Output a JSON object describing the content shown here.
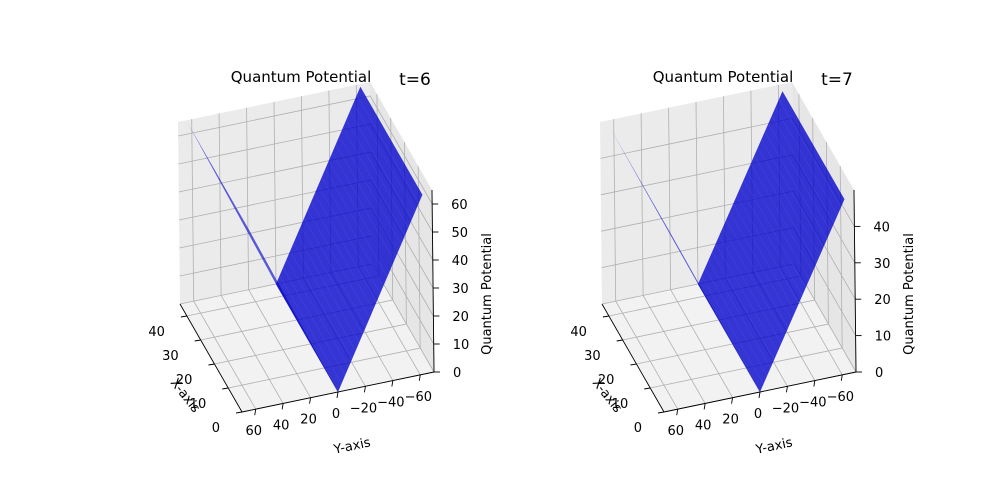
{
  "figure": {
    "background": "#ffffff",
    "pane_color": "#f2f2f2",
    "grid_color": "#b0b0b0",
    "surface_color": "#0000cc"
  },
  "chart_data": [
    {
      "type": "surface3d",
      "title": "Quantum Potential",
      "annotation": "t=6",
      "xlabel": "X-axis",
      "ylabel": "Y-axis",
      "zlabel": "Quantum Potential",
      "x_ticks": [
        "0",
        "10",
        "20",
        "30",
        "40"
      ],
      "y_ticks": [
        "60",
        "40",
        "20",
        "0",
        "−20",
        "−40",
        "−60"
      ],
      "z_ticks": [
        "0",
        "10",
        "20",
        "30",
        "40",
        "50",
        "60"
      ],
      "xlim": [
        0,
        45
      ],
      "ylim": [
        -70,
        70
      ],
      "zlim": [
        0,
        65
      ],
      "surface": {
        "form": "V-shaped valley along Y, constant in X",
        "x_range": [
          0,
          45
        ],
        "y_range": [
          -63,
          63
        ],
        "valley_y": 0,
        "z_min": 0,
        "z_at_y_neg": 64,
        "z_at_y_pos": 64
      }
    },
    {
      "type": "surface3d",
      "title": "Quantum Potential",
      "annotation": "t=7",
      "xlabel": "X-axis",
      "ylabel": "Y-axis",
      "zlabel": "Quantum Potential",
      "x_ticks": [
        "0",
        "10",
        "20",
        "30",
        "40"
      ],
      "y_ticks": [
        "60",
        "40",
        "20",
        "0",
        "−20",
        "−40",
        "−60"
      ],
      "z_ticks": [
        "0",
        "10",
        "20",
        "30",
        "40"
      ],
      "xlim": [
        0,
        45
      ],
      "ylim": [
        -70,
        70
      ],
      "zlim": [
        0,
        50
      ],
      "surface": {
        "form": "V-shaped valley along Y, constant in X",
        "x_range": [
          0,
          45
        ],
        "y_range": [
          -63,
          63
        ],
        "valley_y": 0,
        "z_min": 0,
        "z_at_y_neg": 48,
        "z_at_y_pos": 48
      }
    }
  ]
}
